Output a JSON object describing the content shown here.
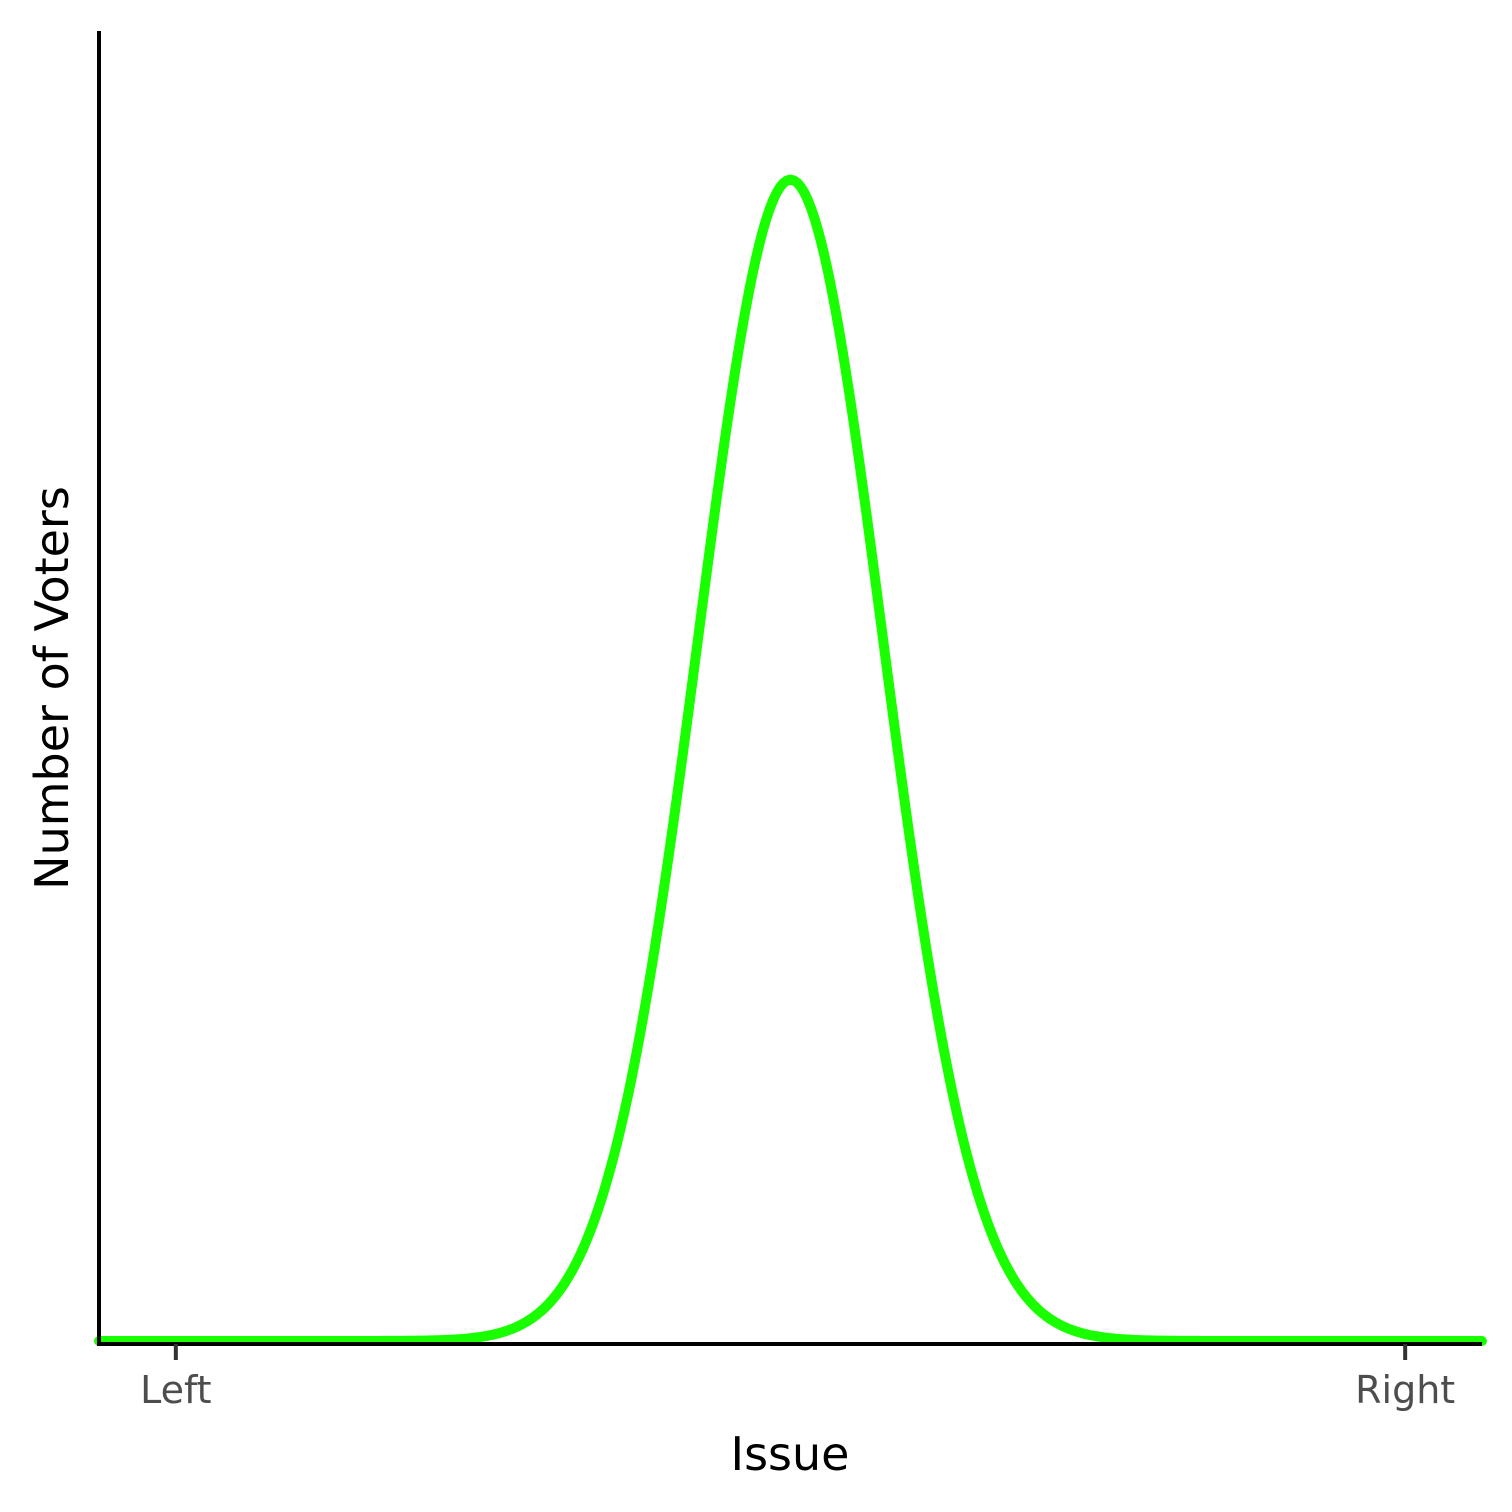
{
  "chart_data": {
    "type": "line",
    "title": "",
    "xlabel": "Issue",
    "ylabel": "Number of Voters",
    "x_tick_labels": [
      {
        "x": -1.0,
        "label": "Left"
      },
      {
        "x": 1.0,
        "label": "Right"
      }
    ],
    "xlim": [
      -1.125,
      1.125
    ],
    "ylim": [
      0,
      3.0
    ],
    "grid": false,
    "legend": "none",
    "series": [
      {
        "color": "#1aff00",
        "distribution": "normal",
        "mean": 0.0,
        "sd": 0.15,
        "x_range": [
          -1.125,
          1.125
        ]
      }
    ]
  }
}
